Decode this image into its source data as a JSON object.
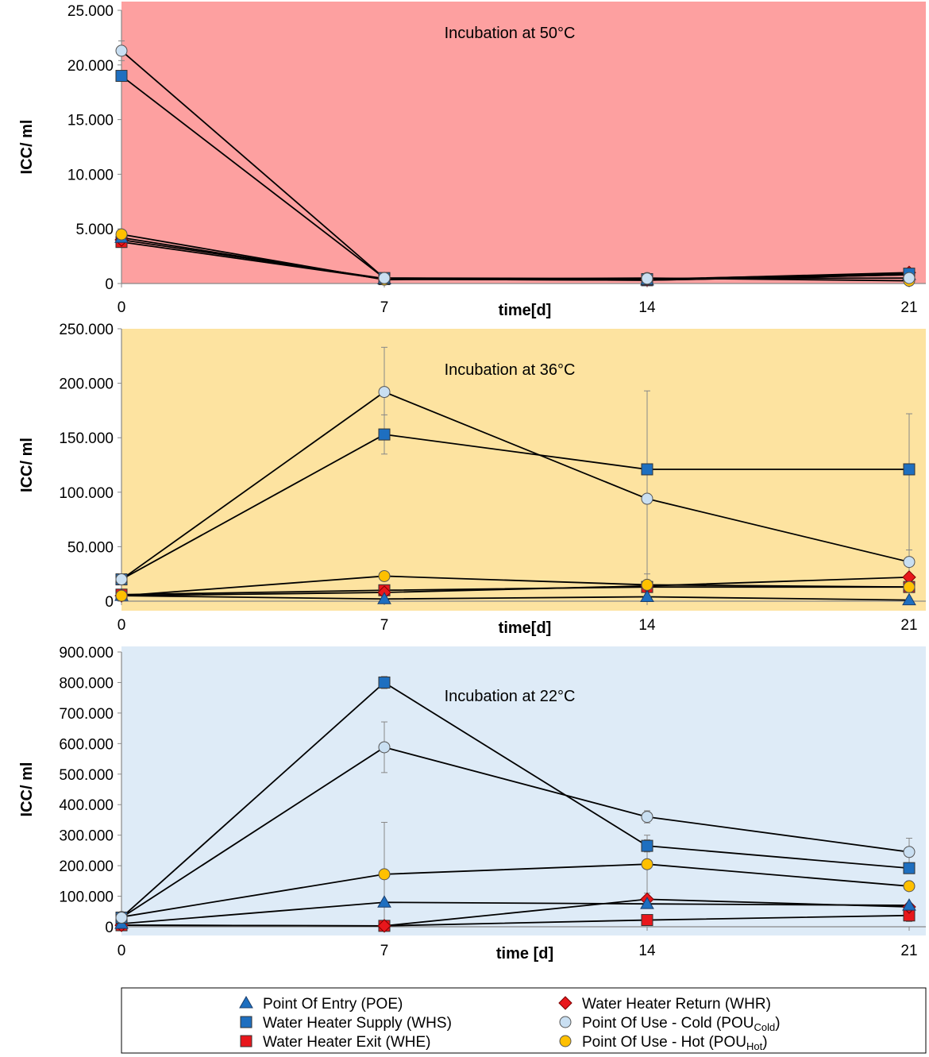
{
  "chart_data": [
    {
      "type": "line",
      "title": "Incubation at 50°C",
      "background": "#fda0a0",
      "xlabel": "time[d]",
      "ylabel": "ICC/ ml",
      "x": [
        0,
        7,
        14,
        21
      ],
      "x_tick_labels": [
        "0",
        "7",
        "14",
        "21"
      ],
      "ylim": [
        0,
        25000
      ],
      "y_ticks": [
        0,
        5000,
        10000,
        15000,
        20000,
        25000
      ],
      "y_tick_labels": [
        "0",
        "5.000",
        "10.000",
        "15.000",
        "20.000",
        "25.000"
      ],
      "series": [
        {
          "key": "POE",
          "values": [
            4200,
            400,
            300,
            800
          ],
          "err": [
            0,
            0,
            0,
            0
          ]
        },
        {
          "key": "WHS",
          "values": [
            19000,
            500,
            400,
            900
          ],
          "err": [
            0,
            0,
            0,
            0
          ]
        },
        {
          "key": "WHE",
          "values": [
            3800,
            400,
            300,
            800
          ],
          "err": [
            0,
            0,
            0,
            0
          ]
        },
        {
          "key": "WHR",
          "values": [
            4000,
            450,
            350,
            1000
          ],
          "err": [
            0,
            0,
            0,
            0
          ]
        },
        {
          "key": "POU_cold",
          "values": [
            21300,
            500,
            450,
            500
          ],
          "err": [
            900,
            0,
            0,
            0
          ]
        },
        {
          "key": "POU_hot",
          "values": [
            4500,
            350,
            500,
            250
          ],
          "err": [
            0,
            0,
            0,
            0
          ]
        }
      ]
    },
    {
      "type": "line",
      "title": "Incubation at 36°C",
      "background": "#fde3a0",
      "xlabel": "time[d]",
      "ylabel": "ICC/ ml",
      "x": [
        0,
        7,
        14,
        21
      ],
      "x_tick_labels": [
        "0",
        "7",
        "14",
        "21"
      ],
      "ylim": [
        0,
        250000
      ],
      "y_ticks": [
        0,
        50000,
        100000,
        150000,
        200000,
        250000
      ],
      "y_tick_labels": [
        "0",
        "50.000",
        "100.000",
        "150.000",
        "200.000",
        "250.000"
      ],
      "series": [
        {
          "key": "POE",
          "values": [
            5000,
            2000,
            4000,
            1000
          ],
          "err": [
            0,
            0,
            0,
            0
          ]
        },
        {
          "key": "WHS",
          "values": [
            20000,
            153000,
            121000,
            121000
          ],
          "err": [
            0,
            18000,
            0,
            0
          ]
        },
        {
          "key": "WHE",
          "values": [
            6000,
            10000,
            13000,
            13000
          ],
          "err": [
            0,
            0,
            0,
            0
          ]
        },
        {
          "key": "WHR",
          "values": [
            5000,
            8000,
            14000,
            22000
          ],
          "err": [
            0,
            0,
            0,
            25000
          ]
        },
        {
          "key": "POU_cold",
          "values": [
            20000,
            192000,
            94000,
            36000
          ],
          "err": [
            0,
            41000,
            99000,
            136000
          ]
        },
        {
          "key": "POU_hot",
          "values": [
            5000,
            23000,
            15000,
            13000
          ],
          "err": [
            0,
            0,
            10000,
            0
          ]
        }
      ]
    },
    {
      "type": "line",
      "title": "Incubation at 22°C",
      "background": "#deebf7",
      "xlabel": "time [d]",
      "ylabel": "ICC/ ml",
      "x": [
        0,
        7,
        14,
        21
      ],
      "x_tick_labels": [
        "0",
        "7",
        "14",
        "21"
      ],
      "ylim": [
        0,
        900000
      ],
      "y_ticks": [
        0,
        100000,
        200000,
        300000,
        400000,
        500000,
        600000,
        700000,
        800000,
        900000
      ],
      "y_tick_labels": [
        "0",
        "100.000",
        "200.000",
        "300.000",
        "400.000",
        "500.000",
        "600.000",
        "700.000",
        "800.000",
        "900.000"
      ],
      "series": [
        {
          "key": "POE",
          "values": [
            10000,
            80000,
            75000,
            70000
          ],
          "err": [
            0,
            0,
            0,
            0
          ]
        },
        {
          "key": "WHS",
          "values": [
            30000,
            800000,
            265000,
            192000
          ],
          "err": [
            0,
            20000,
            20000,
            0
          ]
        },
        {
          "key": "WHE",
          "values": [
            5000,
            3000,
            22000,
            37000
          ],
          "err": [
            0,
            0,
            0,
            20000
          ]
        },
        {
          "key": "WHR",
          "values": [
            5000,
            3000,
            90000,
            65000
          ],
          "err": [
            0,
            0,
            0,
            0
          ]
        },
        {
          "key": "POU_cold",
          "values": [
            30000,
            588000,
            360000,
            245000
          ],
          "err": [
            0,
            83000,
            20000,
            45000
          ]
        },
        {
          "key": "POU_hot",
          "values": [
            32000,
            172000,
            205000,
            133000
          ],
          "err": [
            0,
            170000,
            95000,
            0
          ]
        }
      ]
    }
  ],
  "legend": {
    "items": [
      {
        "key": "POE",
        "label": "Point Of Entry (POE)",
        "sub": "",
        "close": "",
        "marker": "triangle",
        "color": "#1e6fc0"
      },
      {
        "key": "WHS",
        "label": "Water Heater Supply (WHS)",
        "sub": "",
        "close": "",
        "marker": "square",
        "color": "#1e6fc0"
      },
      {
        "key": "WHE",
        "label": "Water Heater Exit (WHE)",
        "sub": "",
        "close": "",
        "marker": "square",
        "color": "#e8171c"
      },
      {
        "key": "WHR",
        "label": "Water Heater Return (WHR)",
        "sub": "",
        "close": "",
        "marker": "diamond",
        "color": "#e8171c"
      },
      {
        "key": "POU_cold",
        "label": "Point Of Use - Cold (POU",
        "sub": "Cold",
        "close": ")",
        "marker": "circle",
        "color": "#c9dff2"
      },
      {
        "key": "POU_hot",
        "label": "Point Of Use - Hot (POU",
        "sub": "Hot",
        "close": ")",
        "marker": "circle",
        "color": "#ffc000"
      }
    ]
  }
}
